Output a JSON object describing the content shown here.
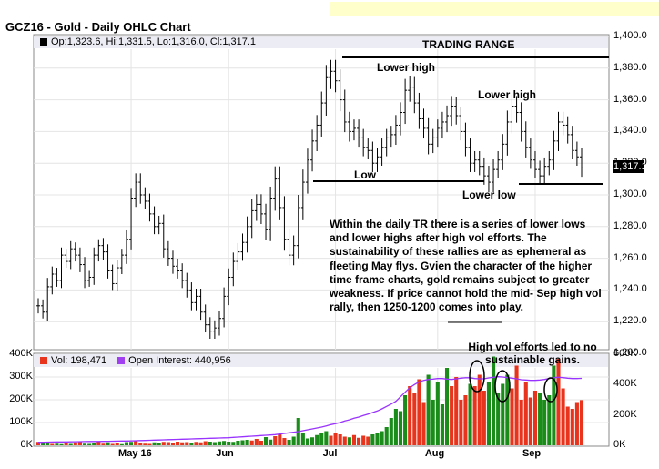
{
  "chart": {
    "title": "GCZ16 - Gold - Daily OHLC Chart",
    "ohlc_legend": "Op:1,323.6, Hi:1,331.5, Lo:1,316.0, Cl:1,317.1",
    "last_price_label": "1,317.1",
    "price_ticks": [
      "1,400.0",
      "1,380.0",
      "1,360.0",
      "1,340.0",
      "1,320.0",
      "1,300.0",
      "1,280.0",
      "1,260.0",
      "1,240.0",
      "1,220.0",
      "1,200.0"
    ],
    "vol_left_ticks": [
      "400K",
      "300K",
      "200K",
      "100K",
      "0K"
    ],
    "oi_right_ticks": [
      "600K",
      "400K",
      "200K",
      "0K"
    ],
    "x_labels": [
      "May 16",
      "Jun",
      "Jul",
      "Aug",
      "Sep"
    ],
    "vol_legend": "Vol: 198,471",
    "oi_legend": "Open Interest: 440,956",
    "colors": {
      "up_volume": "#1a8c1a",
      "down_volume": "#e8341c",
      "open_interest": "#9933ff",
      "price_bar": "#000000"
    }
  },
  "annotations": {
    "trading_range": "TRADING RANGE",
    "lower_high_1": "Lower high",
    "lower_high_2": "Lower high",
    "low": "Low",
    "lower_low": "Lower low",
    "paragraph": "Within the daily TR there is a series of lower lows and lower highs after high vol efforts.  The sustainability of these rallies are as ephemeral as fleeting May flys.  Gvien the character of the higher time frame charts, gold remains subject to greater weakness.  If price cannot hold the mid- Sep high vol rally, then 1250-1200 comes into play.",
    "volume_note": "High vol efforts led to no sustainable gains."
  },
  "chart_data": {
    "type": "ohlc",
    "title": "GCZ16 - Gold - Daily OHLC Chart",
    "ylim": [
      1200,
      1400
    ],
    "volume_ylim": [
      0,
      400000
    ],
    "open_interest_ylim": [
      0,
      600000
    ],
    "last": {
      "open": 1323.6,
      "high": 1331.5,
      "low": 1316.0,
      "close": 1317.1,
      "volume": 198471,
      "open_interest": 440956
    },
    "x_labels": [
      "May 16",
      "Jun",
      "Jul",
      "Aug",
      "Sep"
    ],
    "close": [
      1230,
      1226,
      1242,
      1250,
      1246,
      1262,
      1258,
      1266,
      1262,
      1256,
      1246,
      1248,
      1262,
      1268,
      1264,
      1252,
      1244,
      1254,
      1262,
      1272,
      1298,
      1308,
      1300,
      1296,
      1288,
      1280,
      1282,
      1266,
      1260,
      1255,
      1252,
      1246,
      1240,
      1232,
      1236,
      1226,
      1218,
      1214,
      1216,
      1222,
      1236,
      1248,
      1258,
      1264,
      1270,
      1280,
      1290,
      1294,
      1288,
      1278,
      1298,
      1310,
      1292,
      1272,
      1262,
      1268,
      1292,
      1308,
      1322,
      1334,
      1344,
      1358,
      1374,
      1378,
      1372,
      1360,
      1346,
      1340,
      1342,
      1336,
      1330,
      1328,
      1320,
      1324,
      1330,
      1336,
      1338,
      1344,
      1352,
      1366,
      1368,
      1358,
      1348,
      1342,
      1332,
      1336,
      1342,
      1346,
      1350,
      1356,
      1350,
      1340,
      1330,
      1320,
      1322,
      1318,
      1312,
      1308,
      1316,
      1322,
      1332,
      1346,
      1356,
      1352,
      1340,
      1330,
      1322,
      1316,
      1312,
      1318,
      1322,
      1334,
      1346,
      1344,
      1338,
      1328,
      1324,
      1317
    ],
    "spread": [
      12,
      10,
      14,
      12,
      10,
      12,
      10,
      12,
      10,
      12,
      12,
      10,
      12,
      10,
      12,
      12,
      10,
      12,
      10,
      14,
      16,
      14,
      14,
      12,
      12,
      12,
      12,
      14,
      12,
      12,
      12,
      12,
      12,
      12,
      12,
      12,
      12,
      12,
      12,
      12,
      14,
      14,
      14,
      14,
      14,
      16,
      18,
      16,
      16,
      16,
      18,
      20,
      20,
      18,
      16,
      16,
      20,
      20,
      18,
      18,
      16,
      18,
      20,
      18,
      18,
      18,
      16,
      16,
      14,
      14,
      14,
      14,
      14,
      14,
      14,
      14,
      14,
      16,
      16,
      18,
      18,
      16,
      16,
      16,
      16,
      14,
      14,
      16,
      16,
      16,
      14,
      14,
      14,
      14,
      14,
      14,
      14,
      16,
      16,
      14,
      16,
      18,
      18,
      16,
      16,
      16,
      14,
      14,
      14,
      14,
      14,
      16,
      16,
      16,
      14,
      14,
      14,
      14
    ],
    "volume": [
      15000,
      12000,
      13000,
      10000,
      11000,
      9000,
      12000,
      10000,
      13000,
      15000,
      11000,
      10000,
      12000,
      14000,
      11000,
      13000,
      10000,
      12000,
      9000,
      14000,
      15000,
      18000,
      12000,
      11000,
      10000,
      13000,
      12000,
      15000,
      14000,
      12000,
      16000,
      13000,
      14000,
      12000,
      15000,
      13000,
      18000,
      16000,
      14000,
      17000,
      19000,
      16000,
      15000,
      20000,
      22000,
      24000,
      21000,
      28000,
      20000,
      36000,
      25000,
      40000,
      50000,
      32000,
      24000,
      38000,
      120000,
      55000,
      30000,
      35000,
      45000,
      55000,
      62000,
      42000,
      55000,
      48000,
      38000,
      35000,
      45000,
      33000,
      42000,
      38000,
      48000,
      55000,
      62000,
      80000,
      120000,
      160000,
      150000,
      220000,
      260000,
      230000,
      290000,
      190000,
      310000,
      200000,
      280000,
      180000,
      340000,
      260000,
      300000,
      200000,
      220000,
      270000,
      260000,
      310000,
      240000,
      280000,
      390000,
      230000,
      270000,
      310000,
      250000,
      350000,
      200000,
      280000,
      210000,
      240000,
      230000,
      200000,
      220000,
      350000,
      380000,
      250000,
      170000,
      160000,
      190000,
      198471
    ],
    "volume_direction": [
      "down",
      "up",
      "up",
      "down",
      "up",
      "up",
      "down",
      "up",
      "down",
      "down",
      "up",
      "up",
      "up",
      "down",
      "down",
      "up",
      "down",
      "down",
      "up",
      "up",
      "up",
      "down",
      "down",
      "down",
      "down",
      "up",
      "up",
      "down",
      "down",
      "down",
      "down",
      "down",
      "down",
      "up",
      "down",
      "down",
      "down",
      "up",
      "up",
      "up",
      "up",
      "up",
      "up",
      "up",
      "up",
      "up",
      "down",
      "down",
      "down",
      "up",
      "up",
      "down",
      "down",
      "down",
      "up",
      "up",
      "up",
      "up",
      "up",
      "up",
      "up",
      "up",
      "up",
      "down",
      "down",
      "down",
      "down",
      "up",
      "down",
      "down",
      "down",
      "down",
      "up",
      "up",
      "up",
      "up",
      "up",
      "up",
      "up",
      "up",
      "down",
      "down",
      "down",
      "down",
      "up",
      "up",
      "up",
      "up",
      "up",
      "down",
      "down",
      "down",
      "down",
      "up",
      "down",
      "down",
      "down",
      "up",
      "up",
      "up",
      "up",
      "up",
      "down",
      "down",
      "down",
      "down",
      "down",
      "down",
      "up",
      "up",
      "up",
      "up",
      "down",
      "down",
      "down",
      "down",
      "down",
      "down"
    ],
    "open_interest": [
      20000,
      20500,
      21000,
      21500,
      22000,
      22000,
      22500,
      23000,
      23500,
      24000,
      24500,
      25000,
      25000,
      25500,
      26000,
      26500,
      27000,
      27500,
      28000,
      28500,
      29000,
      30000,
      31000,
      32000,
      33000,
      34000,
      35000,
      36000,
      37000,
      38000,
      39000,
      40000,
      41000,
      42000,
      43000,
      44000,
      45000,
      46000,
      47000,
      48000,
      49000,
      50000,
      52000,
      54000,
      56000,
      58000,
      60000,
      62000,
      64000,
      66000,
      68000,
      70000,
      74000,
      78000,
      82000,
      86000,
      90000,
      96000,
      102000,
      108000,
      114000,
      120000,
      128000,
      136000,
      142000,
      150000,
      160000,
      168000,
      178000,
      186000,
      196000,
      206000,
      216000,
      226000,
      240000,
      256000,
      272000,
      290000,
      320000,
      350000,
      380000,
      400000,
      418000,
      428000,
      434000,
      436000,
      440000,
      440000,
      436000,
      434000,
      438000,
      442000,
      445000,
      445000,
      440000,
      438000,
      438000,
      444000,
      448000,
      452000,
      450000,
      446000,
      442000,
      438000,
      432000,
      430000,
      428000,
      428000,
      430000,
      434000,
      440000,
      446000,
      448000,
      446000,
      442000,
      440000,
      440000,
      440956
    ]
  }
}
